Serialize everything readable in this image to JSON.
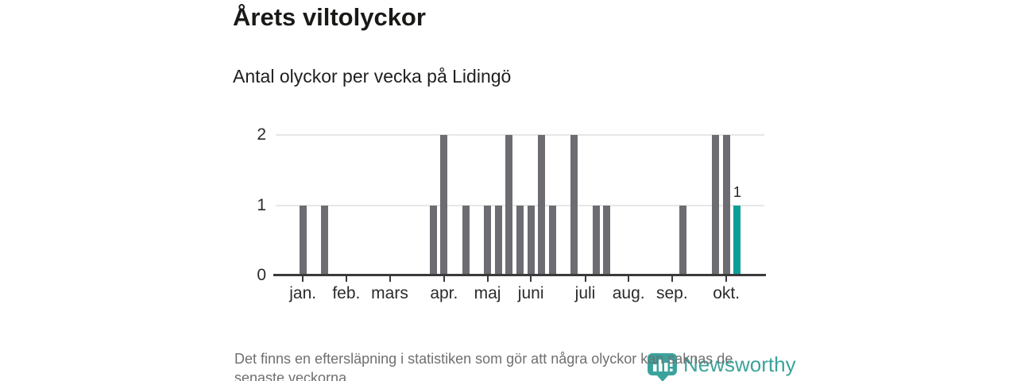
{
  "chart_data": {
    "type": "bar",
    "title": "Årets viltolyckor",
    "subtitle": "Antal olyckor per vecka på Lidingö",
    "x_unit": "week",
    "num_slots": 45,
    "values": [
      0,
      0,
      1,
      0,
      1,
      0,
      0,
      0,
      0,
      0,
      0,
      0,
      0,
      0,
      1,
      2,
      0,
      1,
      0,
      1,
      1,
      2,
      1,
      1,
      2,
      1,
      0,
      2,
      0,
      1,
      1,
      0,
      0,
      0,
      0,
      0,
      0,
      1,
      0,
      0,
      2,
      2,
      1,
      0,
      0
    ],
    "ylim": [
      0,
      2
    ],
    "yticks": [
      0,
      1,
      2
    ],
    "month_ticks": [
      {
        "label": "jan.",
        "slot": 2
      },
      {
        "label": "feb.",
        "slot": 6
      },
      {
        "label": "mars",
        "slot": 10
      },
      {
        "label": "apr.",
        "slot": 15
      },
      {
        "label": "maj",
        "slot": 19
      },
      {
        "label": "juni",
        "slot": 23
      },
      {
        "label": "juli",
        "slot": 28
      },
      {
        "label": "aug.",
        "slot": 32
      },
      {
        "label": "sep.",
        "slot": 36
      },
      {
        "label": "okt.",
        "slot": 41
      }
    ],
    "highlight_index": 42,
    "highlight_value": 1,
    "highlight_label": "1",
    "bar_color": "#6d6c72",
    "highlight_color": "#0ba097",
    "grid": "horizontal",
    "legend": "none"
  },
  "footer": {
    "note": "Det finns en eftersläpning i statistiken som gör att några olyckor kan saknas de senaste veckorna.",
    "logo_text": "Newsworthy",
    "logo_color": "#3ba39c"
  }
}
